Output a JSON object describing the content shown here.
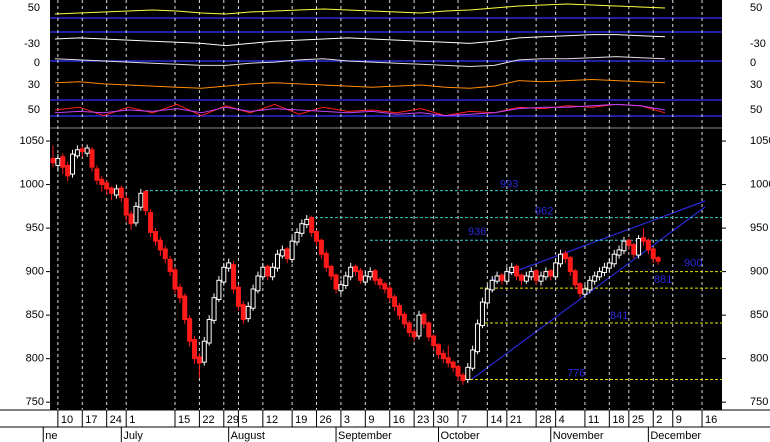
{
  "chart_data": {
    "type": "candlestick",
    "up_color": "#ffffff",
    "down_color": "#ff1a1a",
    "ylim": [
      741,
      1065
    ],
    "yticks": [
      750,
      800,
      850,
      900,
      950,
      1000,
      1050
    ],
    "xticks": [
      {
        "value": 1,
        "label": "10"
      },
      {
        "value": 6,
        "label": "17"
      },
      {
        "value": 11,
        "label": "24"
      },
      {
        "value": 15,
        "label": "1"
      },
      {
        "value": 25,
        "label": "15"
      },
      {
        "value": 30,
        "label": "22"
      },
      {
        "value": 35,
        "label": "29"
      },
      {
        "value": 38,
        "label": "5"
      },
      {
        "value": 43,
        "label": "12"
      },
      {
        "value": 49,
        "label": "19"
      },
      {
        "value": 54,
        "label": "26"
      },
      {
        "value": 59,
        "label": "3"
      },
      {
        "value": 64,
        "label": "9"
      },
      {
        "value": 69,
        "label": "16"
      },
      {
        "value": 74,
        "label": "23"
      },
      {
        "value": 78,
        "label": "30"
      },
      {
        "value": 83,
        "label": "7"
      },
      {
        "value": 89,
        "label": "14"
      },
      {
        "value": 93,
        "label": "21"
      },
      {
        "value": 99,
        "label": "28"
      },
      {
        "value": 103,
        "label": "4"
      },
      {
        "value": 109,
        "label": "11"
      },
      {
        "value": 114,
        "label": "18"
      },
      {
        "value": 118,
        "label": "25"
      },
      {
        "value": 123,
        "label": "2"
      },
      {
        "value": 127,
        "label": "9"
      },
      {
        "value": 133,
        "label": "16"
      }
    ],
    "months": [
      {
        "value": -2,
        "label": "ne"
      },
      {
        "value": 14,
        "label": "July"
      },
      {
        "value": 36,
        "label": "August"
      },
      {
        "value": 58,
        "label": "September"
      },
      {
        "value": 79,
        "label": "October"
      },
      {
        "value": 102,
        "label": "November"
      },
      {
        "value": 122,
        "label": "December"
      }
    ],
    "levels": [
      {
        "value": 993,
        "color": "#33cccc"
      },
      {
        "value": 962,
        "color": "#33cccc"
      },
      {
        "value": 936,
        "color": "#33cccc"
      },
      {
        "value": 900,
        "color": "#e6e600"
      },
      {
        "value": 881,
        "color": "#e6e600"
      },
      {
        "value": 841,
        "color": "#e6e600"
      },
      {
        "value": 776,
        "color": "#e6e600"
      }
    ],
    "indicator_ticks": [
      50,
      -30,
      0,
      30,
      50
    ],
    "indicators": [
      {
        "color": "#ffff40",
        "values": [
          40,
          45,
          50,
          55,
          60,
          55,
          45,
          40,
          50,
          55,
          60,
          65,
          60,
          55,
          50,
          45,
          55,
          60,
          70,
          80,
          85,
          90,
          85,
          80,
          75,
          70
        ]
      },
      {
        "color": "#ffffff",
        "values": [
          50,
          55,
          50,
          45,
          40,
          35,
          30,
          20,
          30,
          40,
          45,
          50,
          55,
          50,
          45,
          40,
          35,
          30,
          40,
          55,
          60,
          65,
          70,
          70,
          65,
          60
        ]
      },
      {
        "color": "#e0e0e0",
        "values": [
          60,
          55,
          50,
          45,
          40,
          35,
          30,
          30,
          40,
          45,
          55,
          60,
          50,
          45,
          40,
          35,
          30,
          25,
          30,
          55,
          60,
          60,
          65,
          70,
          65,
          60
        ]
      },
      {
        "color": "#ff8c00",
        "values": [
          60,
          65,
          55,
          50,
          45,
          40,
          35,
          45,
          55,
          60,
          55,
          50,
          45,
          40,
          45,
          50,
          40,
          35,
          45,
          70,
          65,
          70,
          75,
          70,
          65,
          60
        ]
      },
      {
        "color": "#ff2020",
        "values": [
          50,
          60,
          30,
          60,
          40,
          70,
          30,
          65,
          40,
          70,
          35,
          60,
          45,
          50,
          40,
          55,
          30,
          45,
          40,
          60,
          55,
          65,
          60,
          70,
          65,
          40
        ]
      },
      {
        "color": "#c040ff",
        "values": [
          40,
          45,
          40,
          50,
          45,
          55,
          40,
          60,
          45,
          55,
          50,
          45,
          40,
          45,
          35,
          40,
          30,
          35,
          40,
          55,
          60,
          60,
          65,
          70,
          65,
          50
        ]
      }
    ],
    "candles": [
      [
        1030,
        1045,
        1020,
        1025
      ],
      [
        1022,
        1035,
        1015,
        1030
      ],
      [
        1032,
        1036,
        1012,
        1020
      ],
      [
        1022,
        1026,
        1004,
        1010
      ],
      [
        1012,
        1040,
        1008,
        1035
      ],
      [
        1033,
        1045,
        1030,
        1040
      ],
      [
        1041,
        1044,
        1032,
        1038
      ],
      [
        1036,
        1046,
        1032,
        1042
      ],
      [
        1040,
        1043,
        1015,
        1020
      ],
      [
        1018,
        1022,
        1000,
        1005
      ],
      [
        1006,
        1010,
        992,
        1000
      ],
      [
        1002,
        1005,
        988,
        995
      ],
      [
        996,
        998,
        982,
        990
      ],
      [
        988,
        1000,
        984,
        995
      ],
      [
        996,
        999,
        980,
        985
      ],
      [
        984,
        988,
        958,
        965
      ],
      [
        966,
        970,
        948,
        955
      ],
      [
        956,
        980,
        952,
        975
      ],
      [
        974,
        995,
        970,
        990
      ],
      [
        992,
        994,
        965,
        970
      ],
      [
        968,
        972,
        940,
        945
      ],
      [
        946,
        950,
        930,
        935
      ],
      [
        936,
        940,
        918,
        925
      ],
      [
        926,
        930,
        910,
        915
      ],
      [
        914,
        918,
        895,
        900
      ],
      [
        902,
        905,
        875,
        880
      ],
      [
        882,
        886,
        864,
        870
      ],
      [
        872,
        875,
        840,
        845
      ],
      [
        846,
        850,
        814,
        820
      ],
      [
        822,
        826,
        794,
        800
      ],
      [
        802,
        806,
        778,
        795
      ],
      [
        796,
        825,
        792,
        820
      ],
      [
        818,
        850,
        815,
        845
      ],
      [
        844,
        875,
        840,
        870
      ],
      [
        868,
        895,
        865,
        890
      ],
      [
        888,
        910,
        884,
        905
      ],
      [
        904,
        915,
        900,
        910
      ],
      [
        908,
        912,
        875,
        880
      ],
      [
        882,
        885,
        855,
        860
      ],
      [
        862,
        866,
        840,
        845
      ],
      [
        846,
        865,
        842,
        860
      ],
      [
        858,
        885,
        855,
        880
      ],
      [
        878,
        900,
        875,
        895
      ],
      [
        894,
        910,
        890,
        905
      ],
      [
        906,
        908,
        890,
        895
      ],
      [
        894,
        910,
        890,
        905
      ],
      [
        904,
        925,
        900,
        920
      ],
      [
        918,
        930,
        915,
        925
      ],
      [
        926,
        928,
        910,
        915
      ],
      [
        914,
        940,
        910,
        935
      ],
      [
        934,
        950,
        930,
        945
      ],
      [
        944,
        960,
        940,
        955
      ],
      [
        954,
        965,
        950,
        960
      ],
      [
        962,
        964,
        940,
        945
      ],
      [
        946,
        948,
        930,
        935
      ],
      [
        936,
        938,
        915,
        920
      ],
      [
        921,
        924,
        900,
        905
      ],
      [
        906,
        908,
        890,
        895
      ],
      [
        896,
        898,
        875,
        880
      ],
      [
        878,
        890,
        874,
        885
      ],
      [
        884,
        900,
        880,
        895
      ],
      [
        894,
        910,
        890,
        905
      ],
      [
        906,
        908,
        895,
        900
      ],
      [
        901,
        904,
        886,
        890
      ],
      [
        888,
        900,
        884,
        895
      ],
      [
        894,
        905,
        890,
        900
      ],
      [
        901,
        903,
        885,
        890
      ],
      [
        891,
        894,
        880,
        885
      ],
      [
        886,
        888,
        875,
        880
      ],
      [
        881,
        884,
        865,
        870
      ],
      [
        871,
        874,
        855,
        860
      ],
      [
        861,
        864,
        845,
        850
      ],
      [
        851,
        854,
        835,
        840
      ],
      [
        841,
        844,
        825,
        830
      ],
      [
        831,
        834,
        820,
        825
      ],
      [
        826,
        855,
        822,
        850
      ],
      [
        851,
        853,
        835,
        840
      ],
      [
        841,
        843,
        820,
        825
      ],
      [
        826,
        828,
        810,
        815
      ],
      [
        816,
        818,
        800,
        805
      ],
      [
        806,
        810,
        795,
        800
      ],
      [
        801,
        815,
        790,
        795
      ],
      [
        796,
        798,
        785,
        790
      ],
      [
        791,
        793,
        775,
        780
      ],
      [
        781,
        784,
        770,
        775
      ],
      [
        776,
        795,
        772,
        790
      ],
      [
        789,
        815,
        786,
        810
      ],
      [
        808,
        845,
        805,
        840
      ],
      [
        838,
        870,
        835,
        865
      ],
      [
        864,
        885,
        860,
        880
      ],
      [
        879,
        895,
        876,
        890
      ],
      [
        889,
        900,
        886,
        895
      ],
      [
        896,
        898,
        885,
        890
      ],
      [
        889,
        905,
        886,
        900
      ],
      [
        899,
        910,
        896,
        905
      ],
      [
        906,
        908,
        890,
        895
      ],
      [
        896,
        898,
        885,
        890
      ],
      [
        889,
        900,
        886,
        895
      ],
      [
        894,
        905,
        890,
        900
      ],
      [
        901,
        903,
        885,
        890
      ],
      [
        889,
        900,
        884,
        895
      ],
      [
        894,
        905,
        890,
        900
      ],
      [
        901,
        903,
        890,
        895
      ],
      [
        894,
        915,
        890,
        910
      ],
      [
        909,
        925,
        905,
        920
      ],
      [
        921,
        924,
        910,
        915
      ],
      [
        916,
        918,
        895,
        900
      ],
      [
        901,
        903,
        880,
        885
      ],
      [
        886,
        888,
        870,
        875
      ],
      [
        874,
        885,
        870,
        880
      ],
      [
        879,
        895,
        875,
        890
      ],
      [
        889,
        900,
        885,
        895
      ],
      [
        894,
        905,
        890,
        900
      ],
      [
        899,
        910,
        895,
        905
      ],
      [
        904,
        915,
        900,
        910
      ],
      [
        909,
        925,
        905,
        920
      ],
      [
        919,
        930,
        915,
        925
      ],
      [
        924,
        940,
        920,
        935
      ],
      [
        936,
        938,
        925,
        930
      ],
      [
        931,
        933,
        915,
        920
      ],
      [
        919,
        942,
        915,
        938
      ],
      [
        939,
        950,
        930,
        935
      ],
      [
        936,
        938,
        920,
        925
      ],
      [
        926,
        928,
        910,
        915
      ],
      [
        916,
        918,
        908,
        912
      ]
    ]
  }
}
